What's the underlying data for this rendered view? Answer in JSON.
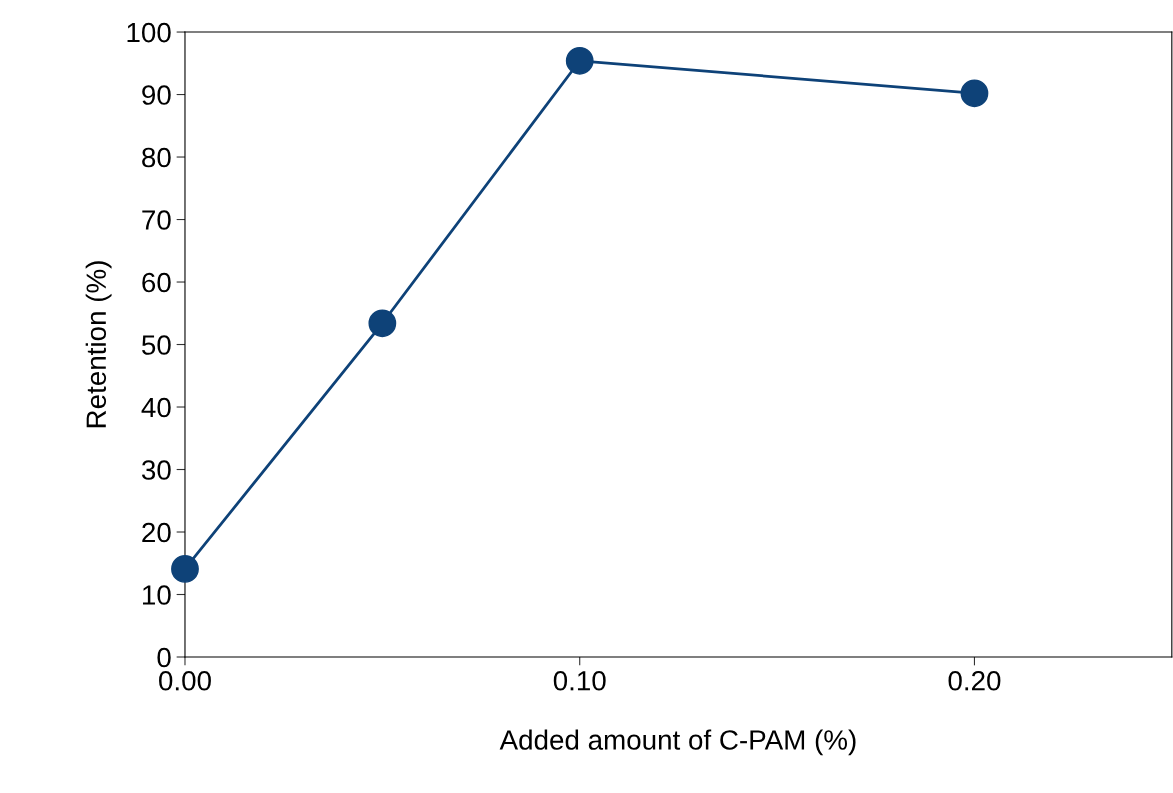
{
  "chart_data": {
    "type": "line",
    "xlabel": "Added amount of C-PAM (%)",
    "ylabel": "Retention (%)",
    "x": [
      0.0,
      0.05,
      0.1,
      0.2
    ],
    "series": [
      {
        "color": "#0e4278",
        "values": [
          14.1,
          53.4,
          95.4,
          90.2
        ]
      }
    ],
    "xlim": [
      0,
      0.25
    ],
    "xticks": [
      {
        "value": 0,
        "label": "0.00"
      },
      {
        "value": 0.1,
        "label": "0.10"
      },
      {
        "value": 0.2,
        "label": "0.20"
      }
    ],
    "ylim": [
      0,
      100
    ],
    "yticks": [
      0,
      10,
      20,
      30,
      40,
      50,
      60,
      70,
      80,
      90,
      100
    ],
    "grid": false,
    "legend": false,
    "marker": "circle",
    "line_style": "solid"
  }
}
